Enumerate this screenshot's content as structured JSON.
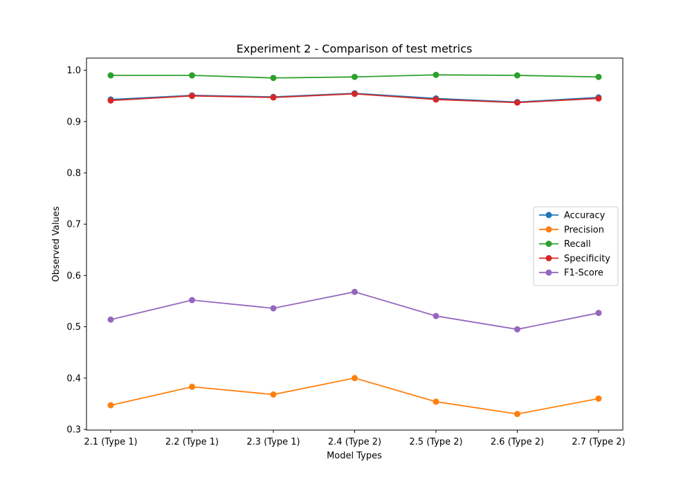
{
  "chart_data": {
    "type": "line",
    "title": "Experiment 2 - Comparison of test metrics",
    "xlabel": "Model Types",
    "ylabel": "Observed Values",
    "categories": [
      "2.1 (Type 1)",
      "2.2 (Type 1)",
      "2.3 (Type 1)",
      "2.4 (Type 2)",
      "2.5 (Type 2)",
      "2.6 (Type 2)",
      "2.7 (Type 2)"
    ],
    "ylim": [
      0.3,
      1.0
    ],
    "yticks": [
      "0.3",
      "0.4",
      "0.5",
      "0.6",
      "0.7",
      "0.8",
      "0.9",
      "1.0"
    ],
    "legend_position": "center-right",
    "grid": false,
    "series": [
      {
        "name": "Accuracy",
        "color": "#1f77b4",
        "values": [
          0.943,
          0.951,
          0.948,
          0.955,
          0.945,
          0.938,
          0.947
        ]
      },
      {
        "name": "Precision",
        "color": "#ff7f0e",
        "values": [
          0.347,
          0.383,
          0.368,
          0.4,
          0.354,
          0.33,
          0.36
        ]
      },
      {
        "name": "Recall",
        "color": "#2ca02c",
        "values": [
          0.99,
          0.99,
          0.985,
          0.987,
          0.991,
          0.99,
          0.987
        ]
      },
      {
        "name": "Specificity",
        "color": "#d62728",
        "values": [
          0.941,
          0.95,
          0.947,
          0.954,
          0.943,
          0.937,
          0.945
        ]
      },
      {
        "name": "F1-Score",
        "color": "#9467bd",
        "values": [
          0.514,
          0.552,
          0.536,
          0.568,
          0.521,
          0.495,
          0.527
        ]
      }
    ]
  }
}
